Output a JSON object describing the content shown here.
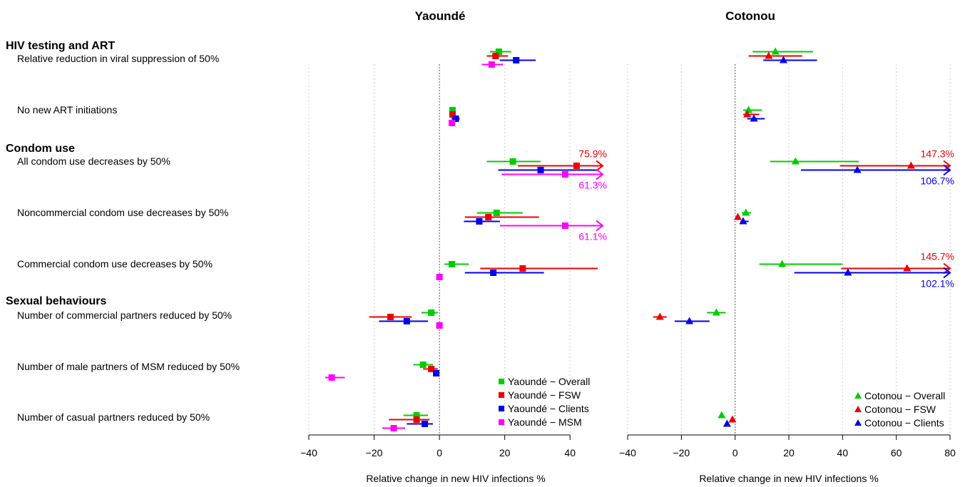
{
  "chart_data": {
    "type": "forest",
    "x_axis_label": "Relative change in new HIV infections %",
    "sections": [
      {
        "label": "HIV testing and ART",
        "row": 0
      },
      {
        "label": "Condom use",
        "row": 2
      },
      {
        "label": "Sexual behaviours",
        "row": 5
      }
    ],
    "scenarios": [
      "Relative reduction in viral suppression of 50%",
      "No new ART initiations",
      "All condom use decreases by 50%",
      "Noncommercial condom use decreases by 50%",
      "Commercial condom use decreases by 50%",
      "Number of commercial partners reduced by 50%",
      "Number of male partners of MSM reduced by 50%",
      "Number of casual partners reduced by 50%"
    ],
    "colors": {
      "Overall": "#00cc00",
      "FSW": "#ee0000",
      "Clients": "#0000ee",
      "MSM": "#ff00ff"
    },
    "panels": [
      {
        "title": "Yaoundé",
        "marker": "square",
        "xlim": [
          -40,
          50
        ],
        "ticks": [
          -40,
          -20,
          0,
          20,
          40
        ],
        "tick_labels": [
          "−40",
          "−20",
          "0",
          "20",
          "40"
        ],
        "groups": [
          "Overall",
          "FSW",
          "Clients",
          "MSM"
        ],
        "legend": [
          "Yaoundé − Overall",
          "Yaoundé − FSW",
          "Yaoundé − Clients",
          "Yaoundé − MSM"
        ],
        "series": [
          {
            "group": "Overall",
            "values": [
              {
                "est": 18.2,
                "lo": 15.5,
                "hi": 22.0
              },
              {
                "est": 4.0,
                "lo": 3.3,
                "hi": 5.0
              },
              {
                "est": 22.5,
                "lo": 14.5,
                "hi": 31.0
              },
              {
                "est": 17.5,
                "lo": 11.5,
                "hi": 25.5
              },
              {
                "est": 3.8,
                "lo": 1.5,
                "hi": 9.0
              },
              {
                "est": -2.5,
                "lo": -5.5,
                "hi": -0.5
              },
              {
                "est": -5.0,
                "lo": -8.0,
                "hi": -2.0
              },
              {
                "est": -7.0,
                "lo": -11.0,
                "hi": -3.5
              }
            ]
          },
          {
            "group": "FSW",
            "values": [
              {
                "est": 17.2,
                "lo": 14.5,
                "hi": 21.0
              },
              {
                "est": 4.0,
                "lo": 3.3,
                "hi": 5.0
              },
              {
                "est": 42.0,
                "lo": 24.0,
                "hi": 75.9,
                "arrow": true,
                "note": "75.9%"
              },
              {
                "est": 15.0,
                "lo": 7.8,
                "hi": 30.5
              },
              {
                "est": 25.5,
                "lo": 12.5,
                "hi": 48.5
              },
              {
                "est": -15.0,
                "lo": -21.5,
                "hi": -8.5
              },
              {
                "est": -2.5,
                "lo": -5.0,
                "hi": -0.5
              },
              {
                "est": -7.0,
                "lo": -15.5,
                "hi": -3.0
              }
            ]
          },
          {
            "group": "Clients",
            "values": [
              {
                "est": 23.5,
                "lo": 18.5,
                "hi": 29.5
              },
              {
                "est": 5.0,
                "lo": 3.7,
                "hi": 6.2
              },
              {
                "est": 31.0,
                "lo": 18.0,
                "hi": 48.0
              },
              {
                "est": 12.2,
                "lo": 7.5,
                "hi": 18.5
              },
              {
                "est": 16.5,
                "lo": 7.8,
                "hi": 32.0
              },
              {
                "est": -10.0,
                "lo": -18.5,
                "hi": -3.5
              },
              {
                "est": -1.0,
                "lo": -1.7,
                "hi": -0.3
              },
              {
                "est": -4.5,
                "lo": -10.0,
                "hi": -2.0
              }
            ]
          },
          {
            "group": "MSM",
            "values": [
              {
                "est": 16.0,
                "lo": 13.0,
                "hi": 19.5
              },
              {
                "est": 3.8,
                "lo": 3.0,
                "hi": 4.7
              },
              {
                "est": 38.5,
                "lo": 19.0,
                "hi": 61.3,
                "arrow": true,
                "note": "61.3%"
              },
              {
                "est": 38.5,
                "lo": 18.5,
                "hi": 61.1,
                "arrow": true,
                "note": "61.1%"
              },
              {
                "est": 0.0,
                "lo": -0.3,
                "hi": 0.3
              },
              {
                "est": 0.0,
                "lo": -0.3,
                "hi": 0.3
              },
              {
                "est": -33.0,
                "lo": -35.0,
                "hi": -29.0
              },
              {
                "est": -14.0,
                "lo": -17.5,
                "hi": -10.5
              }
            ]
          }
        ]
      },
      {
        "title": "Cotonou",
        "marker": "triangle",
        "xlim": [
          -40,
          80
        ],
        "ticks": [
          -40,
          -20,
          0,
          20,
          40,
          60,
          80
        ],
        "tick_labels": [
          "−40",
          "−20",
          "0",
          "20",
          "40",
          "60",
          "80"
        ],
        "groups": [
          "Overall",
          "FSW",
          "Clients"
        ],
        "legend": [
          "Cotonou − Overall",
          "Cotonou − FSW",
          "Cotonou − Clients"
        ],
        "series": [
          {
            "group": "Overall",
            "values": [
              {
                "est": 15.0,
                "lo": 6.5,
                "hi": 29.0
              },
              {
                "est": 5.0,
                "lo": 3.0,
                "hi": 10.0
              },
              {
                "est": 22.5,
                "lo": 13.0,
                "hi": 46.0
              },
              {
                "est": 4.0,
                "lo": 2.5,
                "hi": 6.0
              },
              {
                "est": 17.5,
                "lo": 9.0,
                "hi": 40.0
              },
              {
                "est": -7.0,
                "lo": -10.5,
                "hi": -3.5
              },
              null,
              {
                "est": -5.0,
                "lo": -5.7,
                "hi": -4.3
              }
            ]
          },
          {
            "group": "FSW",
            "values": [
              {
                "est": 12.5,
                "lo": 5.0,
                "hi": 25.0
              },
              {
                "est": 4.5,
                "lo": 3.0,
                "hi": 9.0
              },
              {
                "est": 65.5,
                "lo": 39.0,
                "hi": 147.3,
                "arrow": true,
                "note": "147.3%"
              },
              {
                "est": 1.0,
                "lo": 0.5,
                "hi": 1.5
              },
              {
                "est": 64.0,
                "lo": 39.5,
                "hi": 145.7,
                "arrow": true,
                "note": "145.7%"
              },
              {
                "est": -28.0,
                "lo": -30.5,
                "hi": -25.5
              },
              null,
              {
                "est": -1.0,
                "lo": -1.7,
                "hi": -0.3
              }
            ]
          },
          {
            "group": "Clients",
            "values": [
              {
                "est": 18.0,
                "lo": 10.5,
                "hi": 30.5
              },
              {
                "est": 7.0,
                "lo": 4.5,
                "hi": 11.0
              },
              {
                "est": 45.5,
                "lo": 24.5,
                "hi": 106.7,
                "arrow": true,
                "note": "106.7%"
              },
              {
                "est": 3.0,
                "lo": 2.0,
                "hi": 5.0
              },
              {
                "est": 42.0,
                "lo": 22.0,
                "hi": 102.1,
                "arrow": true,
                "note": "102.1%"
              },
              {
                "est": -17.0,
                "lo": -22.5,
                "hi": -9.5
              },
              null,
              {
                "est": -3.0,
                "lo": -3.8,
                "hi": -2.2
              }
            ]
          }
        ]
      }
    ]
  }
}
